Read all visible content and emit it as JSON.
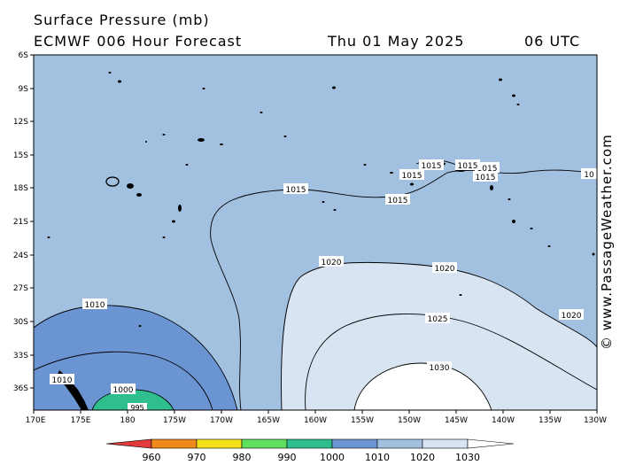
{
  "header": {
    "title": "Surface Pressure (mb)",
    "model": "ECMWF 006 Hour Forecast",
    "date": "Thu 01 May 2025",
    "time": "06 UTC"
  },
  "credit": "© www.PassageWeather.com",
  "lat_labels": [
    "6S",
    "9S",
    "12S",
    "15S",
    "18S",
    "21S",
    "24S",
    "27S",
    "30S",
    "33S",
    "36S"
  ],
  "lon_labels": [
    "170E",
    "175E",
    "180",
    "175W",
    "170W",
    "165W",
    "160W",
    "155W",
    "150W",
    "145W",
    "140W",
    "135W",
    "130W"
  ],
  "isobar_labels": [
    "1010",
    "1000",
    "995",
    "1015",
    "1015",
    "1015",
    "1015",
    "1015",
    "1015",
    "1015",
    "10",
    "1020",
    "1020",
    "1020",
    "1025",
    "1030",
    "1010"
  ],
  "legend": {
    "values": [
      "960",
      "970",
      "980",
      "990",
      "1000",
      "1010",
      "1020",
      "1030"
    ],
    "colors": [
      "#e23b3b",
      "#f08a1a",
      "#f2e01a",
      "#5fe05f",
      "#2fbf8f",
      "#6b95d2",
      "#a2c0e0",
      "#d8e4f2",
      "#ffffff"
    ]
  },
  "fill_colors": {
    "band_1010_1020": "#a2c0e0",
    "band_1000_1010": "#6b95d2",
    "band_990_1000": "#2fbf8f",
    "band_1020_1030": "#d8e4f2",
    "band_above_1030": "#ffffff"
  }
}
